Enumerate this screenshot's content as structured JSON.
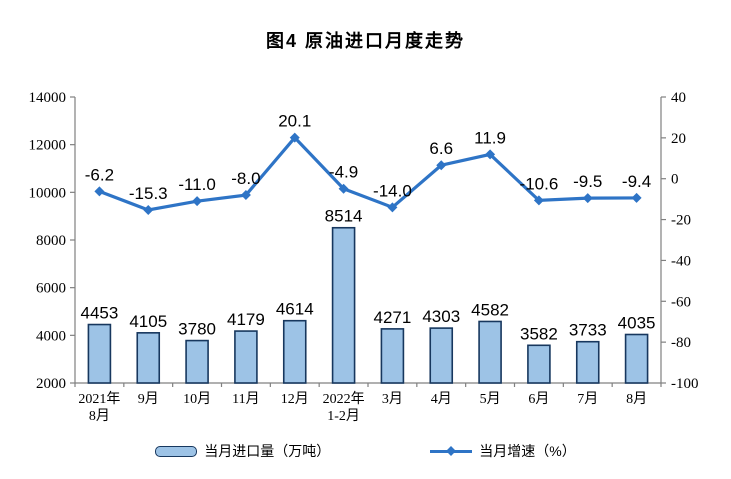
{
  "chart_data": {
    "type": "combo",
    "title": "图4 原油进口月度走势",
    "categories": [
      "2021年\n8月",
      "9月",
      "10月",
      "11月",
      "12月",
      "2022年\n1-2月",
      "3月",
      "4月",
      "5月",
      "6月",
      "7月",
      "8月"
    ],
    "series": [
      {
        "name": "当月进口量（万吨）",
        "type": "bar",
        "axis": "left",
        "values": [
          4453,
          4105,
          3780,
          4179,
          4614,
          8514,
          4271,
          4303,
          4582,
          3582,
          3733,
          4035
        ],
        "labels": [
          "4453",
          "4105",
          "3780",
          "4179",
          "4614",
          "8514",
          "4271",
          "4303",
          "4582",
          "3582",
          "3733",
          "4035"
        ]
      },
      {
        "name": "当月增速（%）",
        "type": "line",
        "axis": "right",
        "values": [
          -6.2,
          -15.3,
          -11.0,
          -8.0,
          20.1,
          -4.9,
          -14.0,
          6.6,
          11.9,
          -10.6,
          -9.5,
          -9.4
        ],
        "labels": [
          "-6.2",
          "-15.3",
          "-11.0",
          "-8.0",
          "20.1",
          "-4.9",
          "-14.0",
          "6.6",
          "11.9",
          "-10.6",
          "-9.5",
          "-9.4"
        ]
      }
    ],
    "left_axis": {
      "min": 2000,
      "max": 14000,
      "step": 2000
    },
    "right_axis": {
      "min": -100,
      "max": 40,
      "step": 20
    },
    "grid": false,
    "legend_position": "bottom",
    "colors": {
      "bar_fill": "#9DC3E6",
      "bar_border": "#17375E",
      "line": "#2E74C6",
      "axis_line": "#808080",
      "text": "#000000"
    }
  }
}
